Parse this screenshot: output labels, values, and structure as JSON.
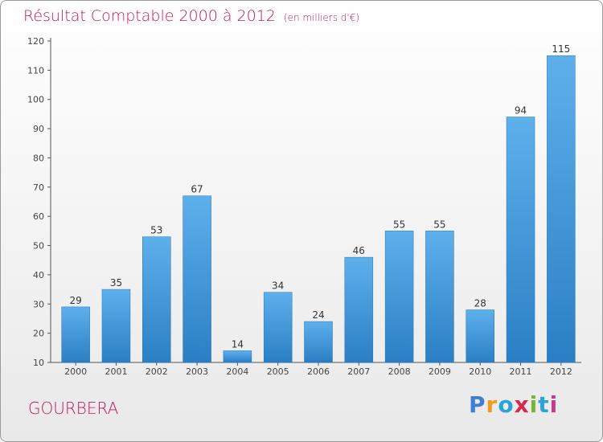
{
  "title": "Résultat Comptable 2000 à 2012",
  "subtitle": "(en milliers d'€)",
  "commune": "GOURBERA",
  "logo": {
    "letters": [
      "P",
      "r",
      "o",
      "x",
      "i",
      "t",
      "i"
    ],
    "colors": [
      "#3f7fd4",
      "#f29a1e",
      "#2aa3d8",
      "#d6294f",
      "#74b636",
      "#2aa3d8",
      "#c63a8c"
    ]
  },
  "colors": {
    "bar_top": "#5eb0ec",
    "bar_bottom": "#2a7fc4",
    "title": "#c2185b",
    "axis": "#555555"
  },
  "chart_data": {
    "type": "bar",
    "title": "Résultat Comptable 2000 à 2012",
    "ylabel": "en milliers d'€",
    "xlabel": "",
    "categories": [
      "2000",
      "2001",
      "2002",
      "2003",
      "2004",
      "2005",
      "2006",
      "2007",
      "2008",
      "2009",
      "2010",
      "2011",
      "2012"
    ],
    "values": [
      29,
      35,
      53,
      67,
      14,
      34,
      24,
      46,
      55,
      55,
      28,
      94,
      115
    ],
    "ylim": [
      10,
      120
    ],
    "yticks": [
      10,
      20,
      30,
      40,
      50,
      60,
      70,
      80,
      90,
      100,
      110,
      120
    ],
    "grid": false
  }
}
